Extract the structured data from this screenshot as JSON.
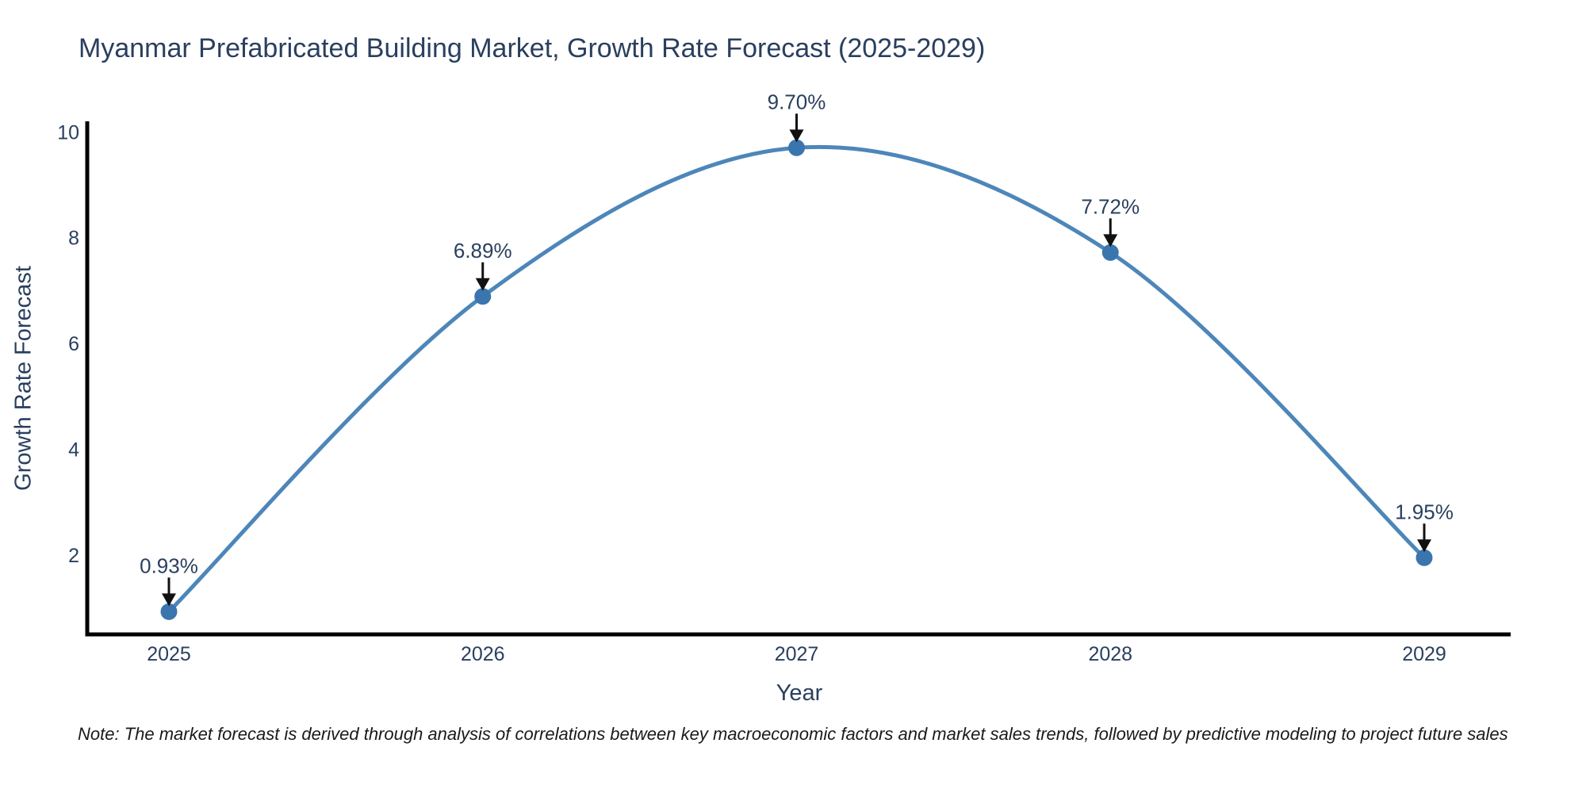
{
  "chart_data": {
    "type": "line",
    "title": "Myanmar Prefabricated Building Market, Growth Rate Forecast (2025-2029)",
    "xlabel": "Year",
    "ylabel": "Growth Rate Forecast",
    "categories": [
      "2025",
      "2026",
      "2027",
      "2028",
      "2029"
    ],
    "series": [
      {
        "name": "Growth Rate Forecast",
        "values": [
          0.93,
          6.89,
          9.7,
          7.72,
          1.95
        ],
        "point_labels": [
          "0.93%",
          "6.89%",
          "9.70%",
          "7.72%",
          "1.95%"
        ]
      }
    ],
    "ylim": [
      0.5,
      10.2
    ],
    "yticks": [
      2,
      4,
      6,
      8,
      10
    ],
    "line_shape": "spline",
    "grid": false,
    "legend": "none",
    "annotation_arrows": "down-to-point",
    "colors": {
      "line": "#4d86b9",
      "marker": "#3a75ae",
      "axis": "#000000",
      "text": "#2a3f5f",
      "annotation_arrow": "#111111",
      "note_text": "#1a1a1a",
      "background": "#ffffff"
    }
  },
  "note": {
    "text": "Note: The market forecast is derived through analysis of correlations between key macroeconomic factors and market sales trends, followed by predictive modeling to project future sales"
  }
}
